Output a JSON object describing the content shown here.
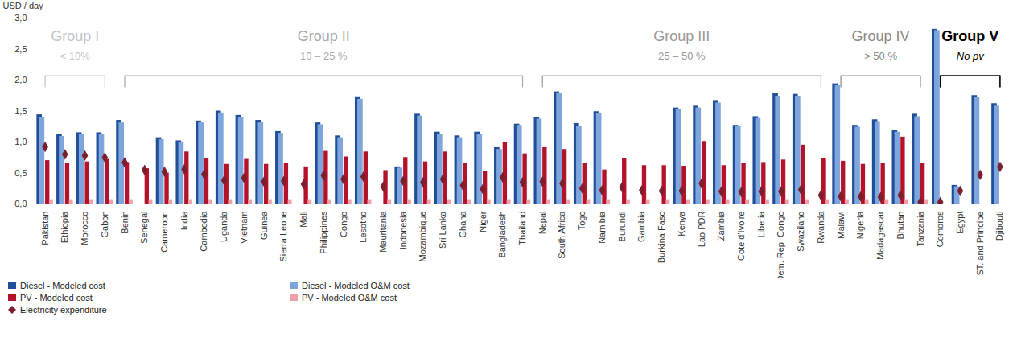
{
  "chart_data": {
    "type": "bar",
    "y_label": "USD / day",
    "ylim": [
      0,
      3
    ],
    "yticks": [
      {
        "value": 0,
        "label": "0,0"
      },
      {
        "value": 0.5,
        "label": "0,5"
      },
      {
        "value": 1,
        "label": "1,0"
      },
      {
        "value": 1.5,
        "label": "1,5"
      },
      {
        "value": 2,
        "label": "2,0"
      },
      {
        "value": 2.5,
        "label": "2,5"
      },
      {
        "value": 3,
        "label": "3,0"
      }
    ],
    "grid": false,
    "legend": "bottom",
    "categories": [
      "Pakistan",
      "Ethiopia",
      "Morocco",
      "Gabon",
      "Benin",
      "Senegal",
      "Cameroon",
      "India",
      "Cambodia",
      "Uganda",
      "Vietnam",
      "Guinea",
      "Sierra Leone",
      "Mali",
      "Philippines",
      "Congo",
      "Lesotho",
      "Mauritania",
      "Indonesia",
      "Mozambique",
      "Sri Lanka",
      "Ghana",
      "Niger",
      "Bangladesh",
      "Thailand",
      "Nepal",
      "South Africa",
      "Togo",
      "Namibia",
      "Burundi",
      "Gambia",
      "Burkina Faso",
      "Kenya",
      "Lao PDR",
      "Zambia",
      "Cote d'Ivoire",
      "Liberia",
      "Dem. Rep. Congo",
      "Swaziland",
      "Rwanda",
      "Malawi",
      "Nigeria",
      "Madagascar",
      "Bhutan",
      "Tanzania",
      "Comoros",
      "Egypt",
      "ST. and Principe",
      "Djibouti"
    ],
    "groups": [
      {
        "title": "Group I",
        "subtitle": "< 10%",
        "first": "Pakistan",
        "last": "Gabon"
      },
      {
        "title": "Group II",
        "subtitle": "10 – 25 %",
        "first": "Benin",
        "last": "Thailand"
      },
      {
        "title": "Group III",
        "subtitle": "25 – 50 %",
        "first": "Nepal",
        "last": "Rwanda"
      },
      {
        "title": "Group IV",
        "subtitle": "> 50 %",
        "first": "Malawi",
        "last": "Tanzania"
      },
      {
        "title": "Group V",
        "subtitle": "No pv",
        "first": "Comoros",
        "last": "Djibouti"
      }
    ],
    "series": [
      {
        "name": "Diesel - Modeled cost",
        "type": "bar",
        "color": "#1f4e9a",
        "values": [
          1.44,
          1.12,
          1.15,
          1.15,
          1.35,
          null,
          1.07,
          1.02,
          1.34,
          1.5,
          1.43,
          1.35,
          1.17,
          null,
          1.31,
          1.1,
          1.73,
          null,
          0.6,
          1.45,
          1.16,
          1.1,
          1.16,
          0.91,
          1.29,
          1.4,
          1.81,
          1.3,
          1.49,
          null,
          null,
          null,
          1.55,
          1.58,
          1.67,
          1.27,
          1.41,
          1.78,
          1.77,
          null,
          1.94,
          1.27,
          1.36,
          1.19,
          1.45,
          2.82,
          0.3,
          1.75,
          1.62
        ]
      },
      {
        "name": "Diesel - Modeled O&M cost",
        "type": "bar",
        "color": "#7fa6dc",
        "values": [
          1.4,
          1.09,
          1.12,
          1.12,
          1.31,
          null,
          1.04,
          0.99,
          1.31,
          1.47,
          1.4,
          1.31,
          1.14,
          null,
          1.28,
          1.07,
          1.69,
          null,
          0.58,
          1.42,
          1.13,
          1.07,
          1.13,
          0.88,
          1.27,
          1.37,
          1.78,
          1.26,
          1.46,
          null,
          null,
          null,
          1.52,
          1.55,
          1.63,
          1.25,
          1.38,
          1.74,
          1.74,
          null,
          1.91,
          1.24,
          1.32,
          1.16,
          1.41,
          2.8,
          0.28,
          1.72,
          1.58
        ]
      },
      {
        "name": "PV - Modeled cost",
        "type": "bar",
        "color": "#b3122a",
        "values": [
          0.7,
          0.66,
          0.68,
          0.72,
          0.67,
          0.57,
          0.5,
          0.84,
          0.74,
          0.64,
          0.72,
          0.64,
          0.66,
          0.6,
          0.85,
          0.76,
          0.84,
          0.54,
          0.75,
          0.68,
          0.84,
          0.66,
          0.53,
          0.99,
          0.81,
          0.91,
          0.88,
          0.65,
          0.55,
          0.74,
          0.62,
          0.62,
          0.61,
          1.01,
          0.62,
          0.66,
          0.67,
          0.71,
          0.95,
          0.74,
          0.69,
          0.64,
          0.66,
          1.08,
          0.65,
          null,
          null,
          null,
          null
        ]
      },
      {
        "name": "PV - Modeled O&M cost",
        "type": "bar",
        "color": "#f0a0a8",
        "values": [
          0.07,
          0.07,
          0.07,
          0.07,
          0.07,
          0.07,
          0.07,
          0.07,
          0.07,
          0.07,
          0.07,
          0.07,
          0.07,
          0.07,
          0.07,
          0.07,
          0.07,
          0.07,
          0.07,
          0.07,
          0.07,
          0.07,
          0.07,
          0.07,
          0.07,
          0.07,
          0.07,
          0.07,
          0.07,
          0.07,
          0.07,
          0.07,
          0.07,
          0.07,
          0.07,
          0.07,
          0.07,
          0.07,
          0.07,
          0.07,
          0.07,
          0.07,
          0.07,
          0.07,
          0.07,
          null,
          null,
          null,
          null
        ]
      },
      {
        "name": "Electricity expenditure",
        "type": "scatter",
        "marker": "diamond",
        "color": "#7a1f2e",
        "values": [
          0.92,
          0.8,
          0.78,
          0.75,
          0.67,
          0.55,
          0.52,
          0.56,
          0.48,
          0.38,
          0.42,
          0.36,
          0.37,
          0.32,
          0.46,
          0.4,
          0.44,
          0.28,
          0.37,
          0.35,
          0.4,
          0.3,
          0.24,
          0.43,
          0.35,
          0.36,
          0.33,
          0.25,
          0.22,
          0.27,
          0.22,
          0.21,
          0.21,
          0.33,
          0.2,
          0.19,
          0.2,
          0.2,
          0.23,
          0.14,
          0.12,
          0.12,
          0.11,
          0.14,
          0.03,
          0.03,
          0.21,
          0.47,
          0.6
        ]
      }
    ]
  }
}
